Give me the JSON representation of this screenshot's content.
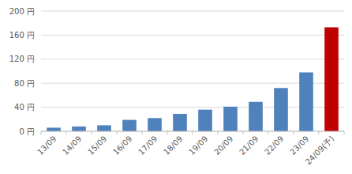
{
  "chart_data": {
    "type": "bar",
    "categories": [
      "13/09",
      "14/09",
      "15/09",
      "16/09",
      "17/09",
      "18/09",
      "19/09",
      "20/09",
      "21/09",
      "22/09",
      "23/09",
      "24/09(予)"
    ],
    "values": [
      6,
      8,
      10,
      19,
      22,
      29,
      36,
      41,
      49,
      72,
      98,
      173
    ],
    "colors": [
      "#4f81bd",
      "#4f81bd",
      "#4f81bd",
      "#4f81bd",
      "#4f81bd",
      "#4f81bd",
      "#4f81bd",
      "#4f81bd",
      "#4f81bd",
      "#4f81bd",
      "#4f81bd",
      "#c00000"
    ],
    "ylim": [
      0,
      200
    ],
    "yticks": [
      {
        "value": 0,
        "label": "0 円"
      },
      {
        "value": 40,
        "label": "40 円"
      },
      {
        "value": 80,
        "label": "80 円"
      },
      {
        "value": 120,
        "label": "120 円"
      },
      {
        "value": 160,
        "label": "160 円"
      },
      {
        "value": 200,
        "label": "200 円"
      }
    ],
    "grid": true
  }
}
